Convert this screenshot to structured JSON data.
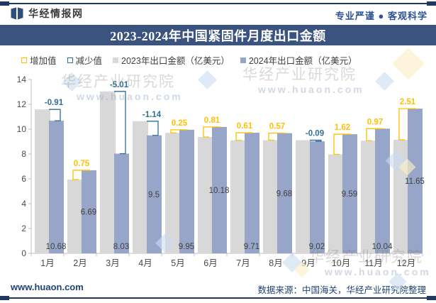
{
  "header": {
    "brand": "华经情报网",
    "motto": "专业严谨 ● 客观科学"
  },
  "title_bar": {
    "title": "2023-2024年中国紧固件月度出口金额"
  },
  "legend": {
    "items": [
      {
        "label": "增加值",
        "type": "increase"
      },
      {
        "label": "减少值",
        "type": "decrease"
      },
      {
        "label": "2023年出口金额（亿美元）",
        "type": "series-2023"
      },
      {
        "label": "2024年出口金额（亿美元）",
        "type": "series-2024"
      }
    ]
  },
  "colors": {
    "accent_navy": "#1F3864",
    "title_bg": "#3A537F",
    "bar_2023": "#D8D8D8",
    "bar_2024": "#97A5C8",
    "increase": "#FFC000",
    "decrease": "#2E6F96",
    "axis_line": "#BFBFBF",
    "axis_text": "#4A4A4A",
    "value_text": "#404040"
  },
  "chart_data": {
    "type": "bar",
    "title": "2023-2024年中国紧固件月度出口金额",
    "categories": [
      "1月",
      "2月",
      "3月",
      "4月",
      "5月",
      "6月",
      "7月",
      "8月",
      "9月",
      "10月",
      "11月",
      "12月"
    ],
    "series": [
      {
        "name": "2023年出口金额（亿美元）",
        "color": "#D8D8D8",
        "values": [
          11.59,
          5.94,
          13.04,
          10.64,
          9.7,
          9.37,
          9.1,
          9.11,
          9.11,
          7.97,
          9.07,
          9.14
        ]
      },
      {
        "name": "2024年出口金额（亿美元）",
        "color": "#97A5C8",
        "values": [
          10.68,
          6.69,
          8.03,
          9.5,
          9.95,
          10.18,
          9.71,
          9.68,
          9.02,
          9.59,
          10.04,
          11.65
        ],
        "data_labels": [
          "10.68",
          "6.69",
          "8.03",
          "9.5",
          "9.95",
          "10.18",
          "9.71",
          "9.68",
          "9.02",
          "9.59",
          "10.04",
          "11.65"
        ]
      }
    ],
    "difference_labels": {
      "values": [
        -0.91,
        0.75,
        -5.01,
        -1.14,
        0.25,
        0.81,
        0.61,
        0.57,
        -0.09,
        1.62,
        0.97,
        2.51
      ],
      "labels": [
        "-0.91",
        "0.75",
        "-5.01",
        "-1.14",
        "0.25",
        "0.81",
        "0.61",
        "0.57",
        "-0.09",
        "1.62",
        "0.97",
        "2.51"
      ],
      "increase_color": "#FFC000",
      "decrease_color": "#2E6F96"
    },
    "ylim": [
      0,
      14
    ],
    "yticks": [
      0,
      2,
      4,
      6,
      8,
      10,
      12,
      14
    ],
    "grid": false,
    "legend_position": "top"
  },
  "watermark": {
    "line1": "华经产业研究院",
    "line2": "www.huaon.com"
  },
  "footer": {
    "site": "www.huaon.com",
    "source": "数据来源：中国海关，华经产业研究院整理"
  }
}
